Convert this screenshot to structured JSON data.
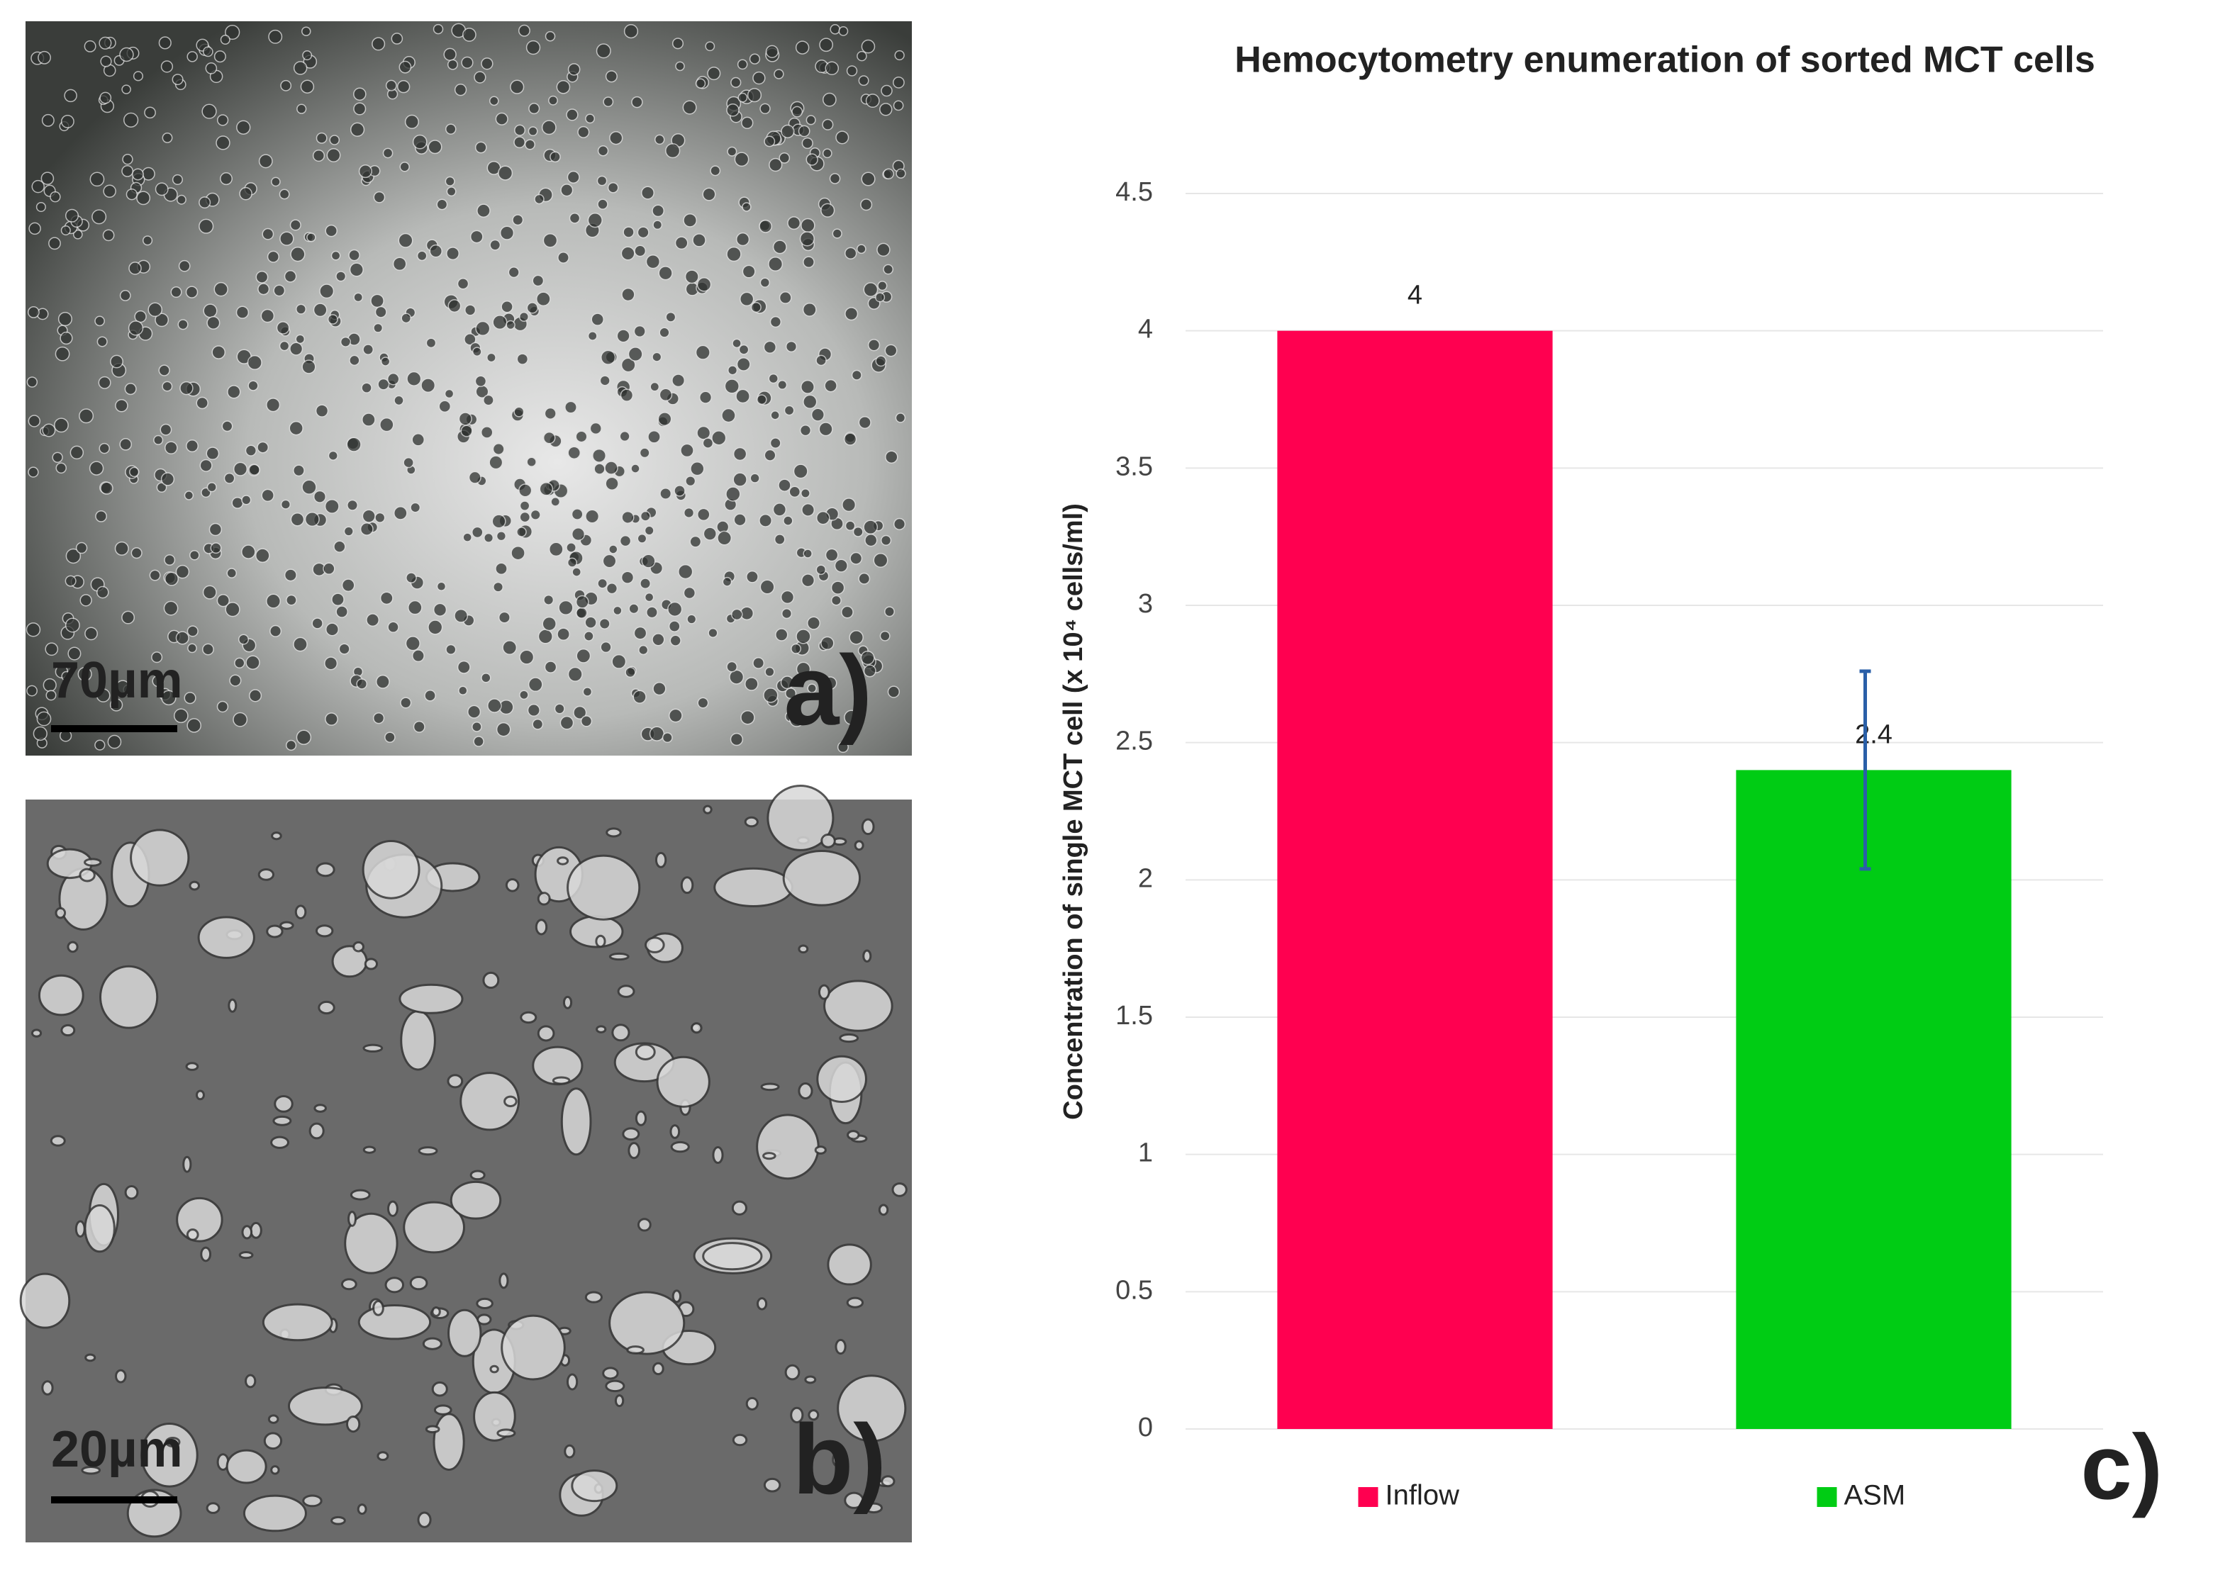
{
  "chart_data": {
    "type": "bar",
    "title": "Hemocytometry enumeration of sorted  MCT cells",
    "y_label": "Concentration of single MCT cell (x 10⁴ cells/ml)",
    "categories": [
      "Inflow",
      "ASM"
    ],
    "values": [
      4,
      2.4
    ],
    "value_labels": [
      "4",
      "2.4"
    ],
    "errors": [
      null,
      0.36
    ],
    "colors": [
      "#ff0050",
      "#00cc14"
    ],
    "error_color": "#2a5fa8",
    "ylim": [
      0,
      4.5
    ],
    "yticks": [
      0,
      0.5,
      1,
      1.5,
      2,
      2.5,
      3,
      3.5,
      4,
      4.5
    ],
    "grid": true,
    "legend": "bottom"
  },
  "panels": [
    {
      "scale_label": "70µm",
      "label": "a)"
    },
    {
      "scale_label": "20µm",
      "label": "b)"
    }
  ],
  "chart_panel_label": "c)"
}
